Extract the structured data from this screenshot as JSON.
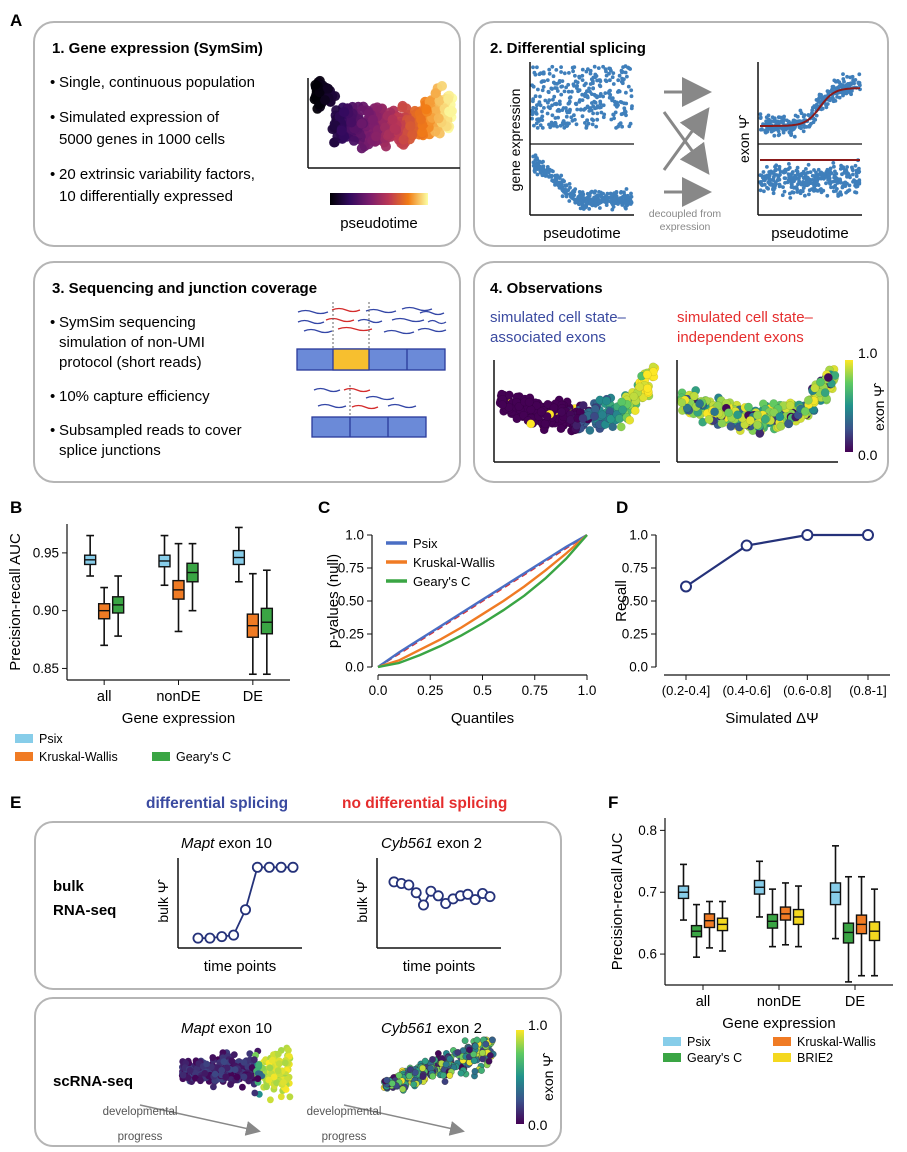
{
  "panels": {
    "A": "A",
    "B": "B",
    "C": "C",
    "D": "D",
    "E": "E",
    "F": "F"
  },
  "box1": {
    "title": "1. Gene expression (SymSim)",
    "bullets": [
      [
        "Single, continuous population"
      ],
      [
        "Simulated expression of",
        "5000 genes in 1000 cells"
      ],
      [
        "20 extrinsic variability factors,",
        "10 differentially expressed"
      ]
    ],
    "colorbar_label": "pseudotime"
  },
  "box2": {
    "title": "2. Differential splicing",
    "ylabel_left": "gene expression",
    "xlabel_left": "pseudotime",
    "ylabel_right": "exon Ψ̂",
    "xlabel_right": "pseudotime",
    "note": [
      "decoupled from",
      "expression"
    ]
  },
  "box3": {
    "title": "3. Sequencing and junction coverage",
    "bullets": [
      [
        "SymSim sequencing",
        "simulation of non-UMI",
        "protocol (short reads)"
      ],
      [
        "10% capture efficiency"
      ],
      [
        "Subsampled reads to cover",
        "splice junctions"
      ]
    ]
  },
  "box4": {
    "title": "4. Observations",
    "label_blue": [
      "simulated cell state–",
      "associated exons"
    ],
    "label_red": [
      "simulated cell state–",
      "independent exons"
    ],
    "cbar_top": "1.0",
    "cbar_bottom": "0.0",
    "cbar_label": "exon Ψ̂"
  },
  "panelE": {
    "header_blue": "differential splicing",
    "header_red": "no differential splicing",
    "bulk_label": [
      "bulk",
      "RNA-seq"
    ],
    "left_title_italic": "Mapt",
    "left_title_rest": " exon 10",
    "right_title_italic": "Cyb561",
    "right_title_rest": " exon 2",
    "ylabel": "bulk Ψ̂",
    "xlabel": "time points",
    "sc_label": "scRNA-seq",
    "arrow_label": [
      "developmental",
      "progress"
    ],
    "cbar_top": "1.0",
    "cbar_bottom": "0.0",
    "cbar_label": "exon Ψ̂"
  },
  "colors": {
    "psix": "#87cde9",
    "kruskal": "#f07b24",
    "geary": "#3aa544",
    "brie2": "#f4d81f",
    "navy": "#25327a",
    "blue_text": "#3a4aa0",
    "red_text": "#e52d2d",
    "scatter_blue": "#3f7fbb"
  },
  "chart_data": [
    {
      "panel": "B",
      "type": "box",
      "ylabel": "Precision-recall AUC",
      "xlabel": "Gene expression",
      "categories": [
        "all",
        "nonDE",
        "DE"
      ],
      "ylim": [
        0.84,
        0.975
      ],
      "yticks": [
        "0.85",
        "0.90",
        "0.95"
      ],
      "legend": [
        "Psix",
        "Kruskal-Wallis",
        "Geary's C"
      ],
      "series": [
        {
          "name": "Psix",
          "values": [
            {
              "min": 0.93,
              "q1": 0.94,
              "median": 0.944,
              "q3": 0.948,
              "max": 0.965
            },
            {
              "min": 0.922,
              "q1": 0.938,
              "median": 0.943,
              "q3": 0.948,
              "max": 0.965
            },
            {
              "min": 0.925,
              "q1": 0.94,
              "median": 0.946,
              "q3": 0.952,
              "max": 0.972
            }
          ]
        },
        {
          "name": "Kruskal-Wallis",
          "values": [
            {
              "min": 0.87,
              "q1": 0.893,
              "median": 0.9,
              "q3": 0.906,
              "max": 0.92
            },
            {
              "min": 0.882,
              "q1": 0.91,
              "median": 0.918,
              "q3": 0.926,
              "max": 0.958
            },
            {
              "min": 0.845,
              "q1": 0.877,
              "median": 0.887,
              "q3": 0.897,
              "max": 0.932
            }
          ]
        },
        {
          "name": "Geary's C",
          "values": [
            {
              "min": 0.878,
              "q1": 0.898,
              "median": 0.905,
              "q3": 0.912,
              "max": 0.93
            },
            {
              "min": 0.9,
              "q1": 0.925,
              "median": 0.933,
              "q3": 0.941,
              "max": 0.958
            },
            {
              "min": 0.845,
              "q1": 0.88,
              "median": 0.89,
              "q3": 0.902,
              "max": 0.935
            }
          ]
        }
      ]
    },
    {
      "panel": "C",
      "type": "line",
      "ylabel": "p-values (null)",
      "xlabel": "Quantiles",
      "xlim": [
        0,
        1
      ],
      "ylim": [
        0,
        1
      ],
      "xticks": [
        "0.0",
        "0.25",
        "0.5",
        "0.75",
        "1.0"
      ],
      "yticks": [
        "0.0",
        "0.25",
        "0.50",
        "0.75",
        "1.0"
      ],
      "x": [
        0,
        0.1,
        0.2,
        0.3,
        0.4,
        0.5,
        0.6,
        0.7,
        0.8,
        0.9,
        1.0
      ],
      "series": [
        {
          "name": "Psix",
          "values": [
            0,
            0.11,
            0.21,
            0.31,
            0.41,
            0.51,
            0.61,
            0.71,
            0.81,
            0.91,
            1.0
          ]
        },
        {
          "name": "Kruskal-Wallis",
          "values": [
            0,
            0.05,
            0.13,
            0.21,
            0.3,
            0.4,
            0.5,
            0.61,
            0.73,
            0.86,
            1.0
          ]
        },
        {
          "name": "Geary's C",
          "values": [
            0,
            0.03,
            0.09,
            0.16,
            0.24,
            0.33,
            0.43,
            0.54,
            0.67,
            0.82,
            1.0
          ]
        }
      ]
    },
    {
      "panel": "D",
      "type": "line",
      "ylabel": "Recall",
      "xlabel": "Simulated ΔΨ",
      "categories": [
        "(0.2-0.4]",
        "(0.4-0.6]",
        "(0.6-0.8]",
        "(0.8-1]"
      ],
      "values": [
        0.61,
        0.92,
        1.0,
        1.0
      ],
      "ylim": [
        0,
        1
      ],
      "yticks": [
        "0.0",
        "0.25",
        "0.50",
        "0.75",
        "1.0"
      ]
    },
    {
      "panel": "E-left",
      "type": "line",
      "x": [
        1,
        2,
        3,
        4,
        5,
        6,
        7,
        8,
        9
      ],
      "values": [
        0.05,
        0.05,
        0.07,
        0.09,
        0.42,
        0.97,
        0.97,
        0.97,
        0.97
      ]
    },
    {
      "panel": "E-right",
      "type": "line",
      "x": [
        1,
        2,
        3,
        4,
        5,
        6,
        7,
        8,
        9,
        10,
        11,
        12,
        13,
        14
      ],
      "values": [
        0.78,
        0.76,
        0.74,
        0.64,
        0.48,
        0.66,
        0.6,
        0.5,
        0.56,
        0.6,
        0.62,
        0.55,
        0.63,
        0.59
      ]
    },
    {
      "panel": "F",
      "type": "box",
      "ylabel": "Precision-recall AUC",
      "xlabel": "Gene expression",
      "categories": [
        "all",
        "nonDE",
        "DE"
      ],
      "ylim": [
        0.55,
        0.82
      ],
      "yticks": [
        "0.6",
        "0.7",
        "0.8"
      ],
      "legend": [
        "Psix",
        "Kruskal-Wallis",
        "Geary's C",
        "BRIE2"
      ],
      "series": [
        {
          "name": "Psix",
          "values": [
            {
              "min": 0.655,
              "q1": 0.69,
              "median": 0.7,
              "q3": 0.71,
              "max": 0.745
            },
            {
              "min": 0.66,
              "q1": 0.697,
              "median": 0.708,
              "q3": 0.719,
              "max": 0.75
            },
            {
              "min": 0.625,
              "q1": 0.68,
              "median": 0.7,
              "q3": 0.715,
              "max": 0.775
            }
          ]
        },
        {
          "name": "Geary's C",
          "values": [
            {
              "min": 0.595,
              "q1": 0.628,
              "median": 0.637,
              "q3": 0.646,
              "max": 0.68
            },
            {
              "min": 0.612,
              "q1": 0.642,
              "median": 0.653,
              "q3": 0.664,
              "max": 0.705
            },
            {
              "min": 0.555,
              "q1": 0.618,
              "median": 0.635,
              "q3": 0.65,
              "max": 0.725
            }
          ]
        },
        {
          "name": "Kruskal-Wallis",
          "values": [
            {
              "min": 0.61,
              "q1": 0.643,
              "median": 0.654,
              "q3": 0.665,
              "max": 0.685
            },
            {
              "min": 0.615,
              "q1": 0.655,
              "median": 0.665,
              "q3": 0.676,
              "max": 0.715
            },
            {
              "min": 0.565,
              "q1": 0.633,
              "median": 0.648,
              "q3": 0.663,
              "max": 0.725
            }
          ]
        },
        {
          "name": "BRIE2",
          "values": [
            {
              "min": 0.605,
              "q1": 0.638,
              "median": 0.648,
              "q3": 0.658,
              "max": 0.685
            },
            {
              "min": 0.612,
              "q1": 0.648,
              "median": 0.66,
              "q3": 0.672,
              "max": 0.71
            },
            {
              "min": 0.565,
              "q1": 0.622,
              "median": 0.637,
              "q3": 0.652,
              "max": 0.705
            }
          ]
        }
      ]
    }
  ]
}
